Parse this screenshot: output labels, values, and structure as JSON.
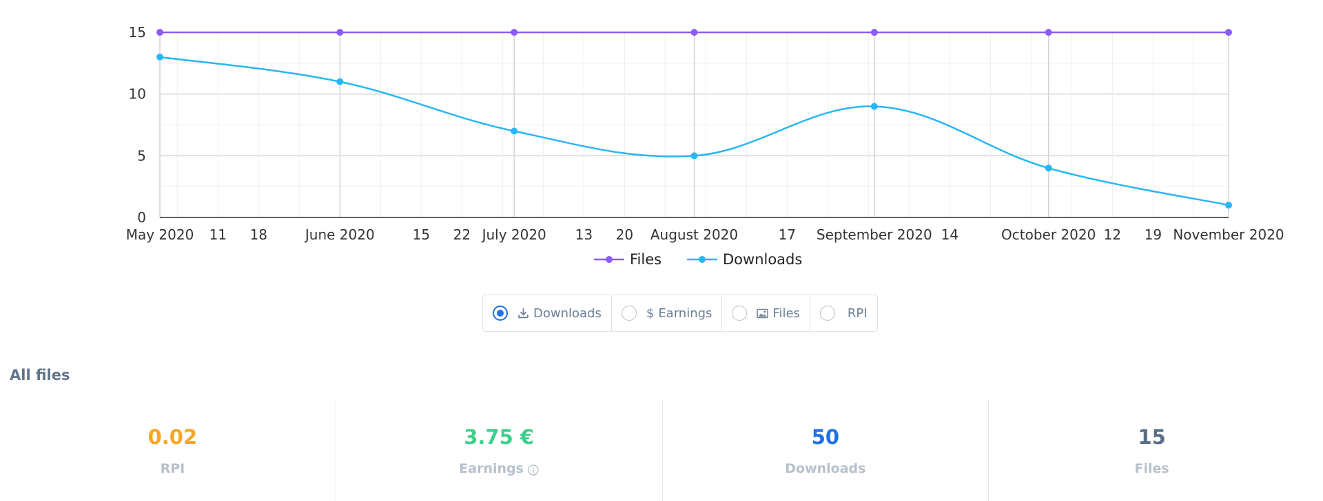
{
  "chart_data": {
    "type": "line",
    "x_ticks": [
      "May 2020",
      "11",
      "18",
      "June 2020",
      "15",
      "22",
      "July 2020",
      "13",
      "20",
      "August 2020",
      "17",
      "September 2020",
      "14",
      "October 2020",
      "12",
      "19",
      "November 2020"
    ],
    "x_points": [
      "2020-05-01",
      "2020-06-01",
      "2020-07-01",
      "2020-08-01",
      "2020-09-01",
      "2020-10-01",
      "2020-11-01"
    ],
    "y_ticks": [
      "0",
      "5",
      "10",
      "15"
    ],
    "ylim": [
      0,
      15
    ],
    "grid": true,
    "legend_position": "bottom",
    "series": [
      {
        "name": "Files",
        "color": "#8b5cf6",
        "values": [
          15,
          15,
          15,
          15,
          15,
          15,
          15
        ]
      },
      {
        "name": "Downloads",
        "color": "#29b6f6",
        "values": [
          13,
          11,
          7,
          5,
          9,
          4,
          1
        ]
      }
    ]
  },
  "toggle": {
    "options": [
      {
        "label": "Downloads",
        "icon": "download-icon",
        "selected": true
      },
      {
        "label": "Earnings",
        "icon": "dollar-icon",
        "selected": false
      },
      {
        "label": "Files",
        "icon": "image-icon",
        "selected": false
      },
      {
        "label": "RPI",
        "icon": "",
        "selected": false
      }
    ]
  },
  "section": {
    "title": "All files"
  },
  "stats": [
    {
      "value": "0.02",
      "label": "RPI",
      "color": "#f6a623"
    },
    {
      "value": "3.75 €",
      "label": "Earnings",
      "color": "#3ecf8e",
      "info_icon": "info-icon"
    },
    {
      "value": "50",
      "label": "Downloads",
      "color": "#1c72e6"
    },
    {
      "value": "15",
      "label": "Files",
      "color": "#5a6f87"
    }
  ]
}
